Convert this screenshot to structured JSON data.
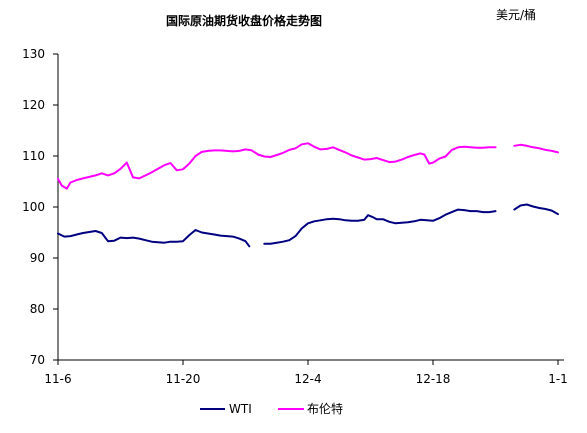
{
  "chart_data": {
    "type": "line",
    "title": "国际原油期货收盘价格走势图",
    "unit_label": "美元/桶",
    "ylim": [
      70,
      130
    ],
    "yticks": [
      70,
      80,
      90,
      100,
      110,
      120,
      130
    ],
    "xticks": [
      {
        "label": "11-6",
        "index": 0
      },
      {
        "label": "11-20",
        "index": 10
      },
      {
        "label": "12-4",
        "index": 20
      },
      {
        "label": "12-18",
        "index": 30
      },
      {
        "label": "1-1",
        "index": 40
      }
    ],
    "x_range": [
      0,
      40
    ],
    "grid": false,
    "legend_position": "bottom",
    "series": [
      {
        "name": "WTI",
        "color": "#000080",
        "segments": [
          [
            [
              0,
              94.8
            ],
            [
              0.5,
              94.2
            ],
            [
              1,
              94.3
            ],
            [
              1.5,
              94.6
            ],
            [
              2,
              94.9
            ],
            [
              2.5,
              95.1
            ],
            [
              3,
              95.3
            ],
            [
              3.5,
              94.9
            ],
            [
              4,
              93.3
            ],
            [
              4.5,
              93.4
            ],
            [
              5,
              94.0
            ],
            [
              5.5,
              93.9
            ],
            [
              6,
              94.0
            ],
            [
              6.5,
              93.8
            ],
            [
              7,
              93.5
            ],
            [
              7.5,
              93.2
            ],
            [
              8,
              93.1
            ],
            [
              8.5,
              93.0
            ],
            [
              9,
              93.2
            ],
            [
              9.5,
              93.2
            ],
            [
              10,
              93.3
            ],
            [
              10.5,
              94.5
            ],
            [
              11,
              95.5
            ],
            [
              11.5,
              95.0
            ],
            [
              12,
              94.8
            ],
            [
              12.5,
              94.6
            ],
            [
              13,
              94.4
            ],
            [
              13.5,
              94.3
            ],
            [
              14,
              94.2
            ],
            [
              14.5,
              93.8
            ],
            [
              15,
              93.3
            ],
            [
              15.3,
              92.3
            ]
          ],
          [
            [
              16.5,
              92.8
            ],
            [
              17,
              92.8
            ],
            [
              17.5,
              93.0
            ],
            [
              18,
              93.2
            ],
            [
              18.5,
              93.5
            ],
            [
              19,
              94.3
            ],
            [
              19.5,
              95.8
            ],
            [
              20,
              96.8
            ],
            [
              20.5,
              97.2
            ],
            [
              21,
              97.4
            ],
            [
              21.5,
              97.6
            ],
            [
              22,
              97.7
            ],
            [
              22.5,
              97.6
            ],
            [
              23,
              97.4
            ],
            [
              23.5,
              97.3
            ],
            [
              24,
              97.3
            ],
            [
              24.5,
              97.5
            ],
            [
              24.8,
              98.4
            ],
            [
              25.2,
              98.0
            ],
            [
              25.5,
              97.6
            ],
            [
              26,
              97.6
            ],
            [
              26.5,
              97.1
            ],
            [
              27,
              96.8
            ],
            [
              27.5,
              96.9
            ],
            [
              28,
              97.0
            ],
            [
              28.5,
              97.2
            ],
            [
              29,
              97.5
            ],
            [
              29.5,
              97.4
            ],
            [
              30,
              97.3
            ],
            [
              30.5,
              97.8
            ],
            [
              31,
              98.5
            ],
            [
              31.5,
              99.0
            ],
            [
              32,
              99.5
            ],
            [
              32.5,
              99.4
            ],
            [
              33,
              99.2
            ],
            [
              33.5,
              99.2
            ],
            [
              34,
              99.0
            ],
            [
              34.5,
              99.0
            ],
            [
              35,
              99.2
            ]
          ],
          [
            [
              36.5,
              99.5
            ],
            [
              37,
              100.3
            ],
            [
              37.5,
              100.5
            ],
            [
              38,
              100.1
            ],
            [
              38.5,
              99.8
            ],
            [
              39,
              99.6
            ],
            [
              39.5,
              99.3
            ],
            [
              40,
              98.6
            ]
          ]
        ]
      },
      {
        "name": "布伦特",
        "color": "#FF00FF",
        "segments": [
          [
            [
              0,
              105.5
            ],
            [
              0.3,
              104.2
            ],
            [
              0.7,
              103.6
            ],
            [
              1,
              104.8
            ],
            [
              1.5,
              105.3
            ],
            [
              2,
              105.6
            ],
            [
              2.5,
              105.9
            ],
            [
              3,
              106.2
            ],
            [
              3.5,
              106.6
            ],
            [
              4,
              106.2
            ],
            [
              4.5,
              106.6
            ],
            [
              5,
              107.5
            ],
            [
              5.5,
              108.7
            ],
            [
              5.8,
              107.0
            ],
            [
              6,
              105.8
            ],
            [
              6.5,
              105.6
            ],
            [
              7,
              106.2
            ],
            [
              7.5,
              106.8
            ],
            [
              8,
              107.5
            ],
            [
              8.5,
              108.2
            ],
            [
              9,
              108.6
            ],
            [
              9.5,
              107.2
            ],
            [
              10,
              107.4
            ],
            [
              10.5,
              108.5
            ],
            [
              11,
              110.0
            ],
            [
              11.5,
              110.8
            ],
            [
              12,
              111.0
            ],
            [
              12.5,
              111.1
            ],
            [
              13,
              111.1
            ],
            [
              13.5,
              111.0
            ],
            [
              14,
              110.9
            ],
            [
              14.5,
              111.0
            ],
            [
              15,
              111.3
            ],
            [
              15.5,
              111.1
            ],
            [
              16,
              110.3
            ],
            [
              16.5,
              109.9
            ],
            [
              17,
              109.8
            ],
            [
              17.5,
              110.2
            ],
            [
              18,
              110.6
            ],
            [
              18.5,
              111.2
            ],
            [
              19,
              111.5
            ],
            [
              19.5,
              112.3
            ],
            [
              20,
              112.5
            ],
            [
              20.5,
              111.8
            ],
            [
              21,
              111.3
            ],
            [
              21.5,
              111.4
            ],
            [
              22,
              111.7
            ],
            [
              22.5,
              111.2
            ],
            [
              23,
              110.7
            ],
            [
              23.5,
              110.1
            ],
            [
              24,
              109.7
            ],
            [
              24.5,
              109.3
            ],
            [
              25,
              109.4
            ],
            [
              25.5,
              109.6
            ],
            [
              26,
              109.2
            ],
            [
              26.5,
              108.8
            ],
            [
              27,
              108.9
            ],
            [
              27.5,
              109.3
            ],
            [
              28,
              109.8
            ],
            [
              28.5,
              110.2
            ],
            [
              29,
              110.5
            ],
            [
              29.3,
              110.3
            ],
            [
              29.7,
              108.5
            ],
            [
              30,
              108.7
            ],
            [
              30.5,
              109.5
            ],
            [
              31,
              109.9
            ],
            [
              31.5,
              111.2
            ],
            [
              32,
              111.7
            ],
            [
              32.5,
              111.8
            ],
            [
              33,
              111.7
            ],
            [
              33.5,
              111.6
            ],
            [
              34,
              111.6
            ],
            [
              34.5,
              111.7
            ],
            [
              35,
              111.7
            ]
          ],
          [
            [
              36.5,
              112.0
            ],
            [
              37,
              112.2
            ],
            [
              37.5,
              112.0
            ],
            [
              38,
              111.7
            ],
            [
              38.5,
              111.5
            ],
            [
              39,
              111.2
            ],
            [
              39.5,
              111.0
            ],
            [
              40,
              110.7
            ]
          ]
        ]
      }
    ]
  }
}
